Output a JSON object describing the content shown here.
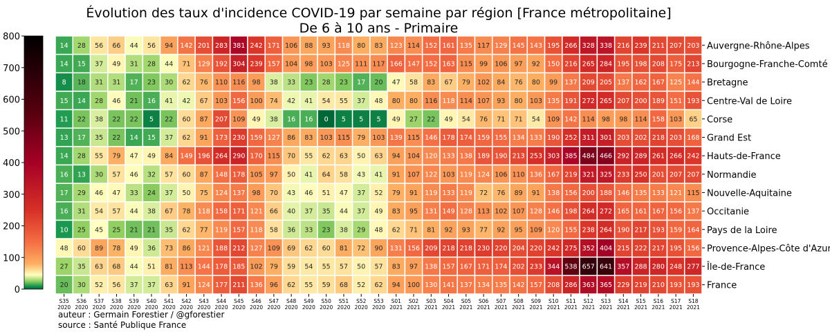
{
  "chart_data": {
    "type": "heatmap",
    "title": "Évolution des taux d'incidence COVID-19 par semaine par région [France métropolitaine]",
    "subtitle": "De 6 à 10 ans - Primaire",
    "colorbar": {
      "min": 0,
      "max": 800,
      "ticks": [
        0,
        100,
        200,
        300,
        400,
        500,
        600,
        700,
        800
      ]
    },
    "weeks": [
      "S35",
      "S36",
      "S37",
      "S38",
      "S39",
      "S40",
      "S41",
      "S42",
      "S43",
      "S44",
      "S45",
      "S46",
      "S47",
      "S48",
      "S49",
      "S50",
      "S51",
      "S52",
      "S53",
      "S01",
      "S02",
      "S03",
      "S04",
      "S05",
      "S06",
      "S07",
      "S08",
      "S09",
      "S10",
      "S11",
      "S12",
      "S13",
      "S14",
      "S15",
      "S16",
      "S17",
      "S18"
    ],
    "years": [
      "2020",
      "2020",
      "2020",
      "2020",
      "2020",
      "2020",
      "2020",
      "2020",
      "2020",
      "2020",
      "2020",
      "2020",
      "2020",
      "2020",
      "2020",
      "2020",
      "2020",
      "2020",
      "2020",
      "2021",
      "2021",
      "2021",
      "2021",
      "2021",
      "2021",
      "2021",
      "2021",
      "2021",
      "2021",
      "2021",
      "2021",
      "2021",
      "2021",
      "2021",
      "2021",
      "2021",
      "2021"
    ],
    "rows": [
      {
        "name": "Auvergne-Rhône-Alpes",
        "values": [
          14,
          28,
          56,
          66,
          44,
          56,
          94,
          142,
          201,
          283,
          381,
          242,
          171,
          106,
          88,
          93,
          118,
          80,
          83,
          123,
          114,
          152,
          161,
          135,
          117,
          129,
          145,
          143,
          195,
          266,
          328,
          338,
          216,
          239,
          211,
          207,
          203
        ]
      },
      {
        "name": "Bourgogne-Franche-Comté",
        "values": [
          14,
          15,
          37,
          49,
          31,
          28,
          44,
          71,
          129,
          192,
          304,
          239,
          157,
          104,
          98,
          103,
          125,
          111,
          117,
          166,
          147,
          152,
          163,
          115,
          99,
          106,
          97,
          92,
          150,
          216,
          265,
          284,
          195,
          198,
          208,
          175,
          213
        ]
      },
      {
        "name": "Bretagne",
        "values": [
          8,
          18,
          31,
          31,
          17,
          23,
          30,
          62,
          76,
          110,
          116,
          98,
          38,
          33,
          23,
          28,
          23,
          17,
          20,
          47,
          58,
          83,
          67,
          79,
          102,
          84,
          76,
          80,
          99,
          137,
          209,
          205,
          137,
          162,
          167,
          125,
          144
        ]
      },
      {
        "name": "Centre-Val de Loire",
        "values": [
          15,
          14,
          28,
          46,
          21,
          16,
          41,
          42,
          67,
          103,
          156,
          100,
          74,
          42,
          41,
          54,
          55,
          37,
          48,
          80,
          80,
          116,
          118,
          114,
          107,
          93,
          80,
          103,
          135,
          191,
          272,
          265,
          207,
          200,
          189,
          151,
          193
        ]
      },
      {
        "name": "Corse",
        "values": [
          11,
          22,
          38,
          22,
          22,
          5,
          22,
          60,
          87,
          207,
          109,
          49,
          38,
          16,
          16,
          0,
          5,
          5,
          5,
          49,
          27,
          22,
          49,
          54,
          76,
          71,
          71,
          54,
          109,
          142,
          114,
          98,
          98,
          114,
          158,
          103,
          65
        ]
      },
      {
        "name": "Grand Est",
        "values": [
          13,
          17,
          35,
          22,
          14,
          15,
          37,
          62,
          91,
          173,
          230,
          159,
          127,
          86,
          83,
          103,
          115,
          79,
          103,
          139,
          115,
          146,
          178,
          174,
          159,
          155,
          134,
          133,
          190,
          252,
          311,
          301,
          203,
          202,
          218,
          203,
          168
        ]
      },
      {
        "name": "Hauts-de-France",
        "values": [
          14,
          28,
          55,
          79,
          47,
          49,
          84,
          149,
          196,
          264,
          290,
          170,
          115,
          70,
          55,
          62,
          63,
          50,
          63,
          94,
          104,
          120,
          133,
          138,
          189,
          190,
          213,
          253,
          303,
          385,
          484,
          466,
          292,
          289,
          261,
          266,
          242
        ]
      },
      {
        "name": "Normandie",
        "values": [
          16,
          13,
          30,
          57,
          46,
          32,
          57,
          60,
          87,
          148,
          178,
          105,
          97,
          50,
          41,
          64,
          58,
          43,
          41,
          91,
          107,
          122,
          103,
          119,
          124,
          106,
          110,
          136,
          167,
          219,
          321,
          325,
          233,
          250,
          201,
          207,
          207
        ]
      },
      {
        "name": "Nouvelle-Aquitaine",
        "values": [
          17,
          29,
          46,
          47,
          33,
          24,
          37,
          50,
          75,
          124,
          137,
          98,
          70,
          43,
          46,
          51,
          47,
          37,
          52,
          79,
          91,
          119,
          133,
          119,
          72,
          76,
          89,
          91,
          138,
          156,
          200,
          188,
          146,
          135,
          133,
          121,
          115
        ]
      },
      {
        "name": "Occitanie",
        "values": [
          16,
          31,
          54,
          57,
          44,
          38,
          67,
          78,
          118,
          158,
          171,
          121,
          66,
          40,
          37,
          35,
          44,
          37,
          49,
          83,
          95,
          131,
          149,
          128,
          113,
          102,
          107,
          128,
          146,
          198,
          264,
          272,
          165,
          161,
          167,
          156,
          137
        ]
      },
      {
        "name": "Pays de la Loire",
        "values": [
          10,
          25,
          45,
          25,
          21,
          21,
          35,
          62,
          77,
          119,
          157,
          118,
          58,
          36,
          33,
          23,
          38,
          29,
          48,
          62,
          71,
          81,
          92,
          93,
          77,
          92,
          95,
          109,
          120,
          155,
          238,
          264,
          190,
          217,
          193,
          159,
          164
        ]
      },
      {
        "name": "Provence-Alpes-Côte d'Azur",
        "values": [
          48,
          60,
          89,
          78,
          49,
          36,
          73,
          86,
          121,
          188,
          212,
          127,
          109,
          69,
          62,
          60,
          81,
          72,
          90,
          131,
          156,
          209,
          218,
          218,
          230,
          220,
          204,
          220,
          242,
          275,
          352,
          404,
          215,
          222,
          217,
          195,
          156
        ]
      },
      {
        "name": "Île-de-France",
        "values": [
          27,
          35,
          63,
          68,
          44,
          51,
          81,
          113,
          144,
          178,
          185,
          102,
          79,
          59,
          54,
          55,
          57,
          50,
          57,
          83,
          97,
          138,
          157,
          167,
          171,
          174,
          202,
          233,
          344,
          538,
          657,
          641,
          357,
          288,
          280,
          248,
          277
        ]
      },
      {
        "name": "France",
        "values": [
          20,
          30,
          52,
          56,
          37,
          37,
          63,
          91,
          124,
          177,
          211,
          136,
          96,
          62,
          55,
          59,
          68,
          52,
          62,
          94,
          100,
          130,
          141,
          137,
          134,
          135,
          142,
          157,
          208,
          286,
          363,
          365,
          229,
          219,
          210,
          193,
          193
        ]
      }
    ]
  },
  "footer": {
    "author": "auteur : Germain Forestier / @gforestier",
    "source": "source : Santé Publique France"
  }
}
